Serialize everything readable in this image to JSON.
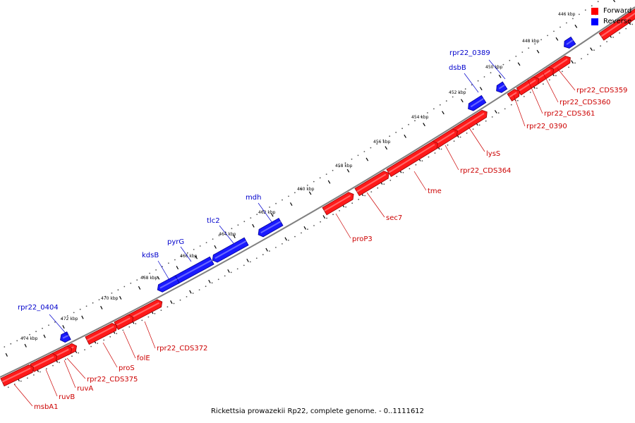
{
  "legend": {
    "forward": {
      "label": "Forward",
      "color": "#ff0000"
    },
    "reverse": {
      "label": "Reverse",
      "color": "#0000ff"
    }
  },
  "caption": "Rickettsia prowazekii Rp22, complete genome. - 0..1111612",
  "backbone_color": "#808080",
  "ticks": [
    "446 kbp",
    "448 kbp",
    "450 kbp",
    "452 kbp",
    "454 kbp",
    "456 kbp",
    "458 kbp",
    "460 kbp",
    "462 kbp",
    "464 kbp",
    "466 kbp",
    "468 kbp",
    "470 kbp",
    "472 kbp",
    "474 kbp"
  ],
  "genes": [
    {
      "name": "",
      "strand": "forward"
    },
    {
      "name": "rpr22_CDS359",
      "strand": "forward"
    },
    {
      "name": "rpr22_CDS360",
      "strand": "forward"
    },
    {
      "name": "rpr22_CDS361",
      "strand": "forward"
    },
    {
      "name": "rpr22_0390",
      "strand": "forward"
    },
    {
      "name": "lysS",
      "strand": "forward"
    },
    {
      "name": "rpr22_CDS364",
      "strand": "forward"
    },
    {
      "name": "tme",
      "strand": "forward"
    },
    {
      "name": "sec7",
      "strand": "forward"
    },
    {
      "name": "proP3",
      "strand": "forward"
    },
    {
      "name": "rpr22_CDS372",
      "strand": "forward"
    },
    {
      "name": "folE",
      "strand": "forward"
    },
    {
      "name": "proS",
      "strand": "forward"
    },
    {
      "name": "rpr22_CDS375",
      "strand": "forward"
    },
    {
      "name": "ruvA",
      "strand": "forward"
    },
    {
      "name": "ruvB",
      "strand": "forward"
    },
    {
      "name": "msbA1",
      "strand": "forward"
    },
    {
      "name": "",
      "strand": "reverse"
    },
    {
      "name": "rpr22_0389",
      "strand": "reverse"
    },
    {
      "name": "dsbB",
      "strand": "reverse"
    },
    {
      "name": "mdh",
      "strand": "reverse"
    },
    {
      "name": "tlc2",
      "strand": "reverse"
    },
    {
      "name": "pyrG",
      "strand": "reverse"
    },
    {
      "name": "kdsB",
      "strand": "reverse"
    },
    {
      "name": "rpr22_0404",
      "strand": "reverse"
    }
  ]
}
